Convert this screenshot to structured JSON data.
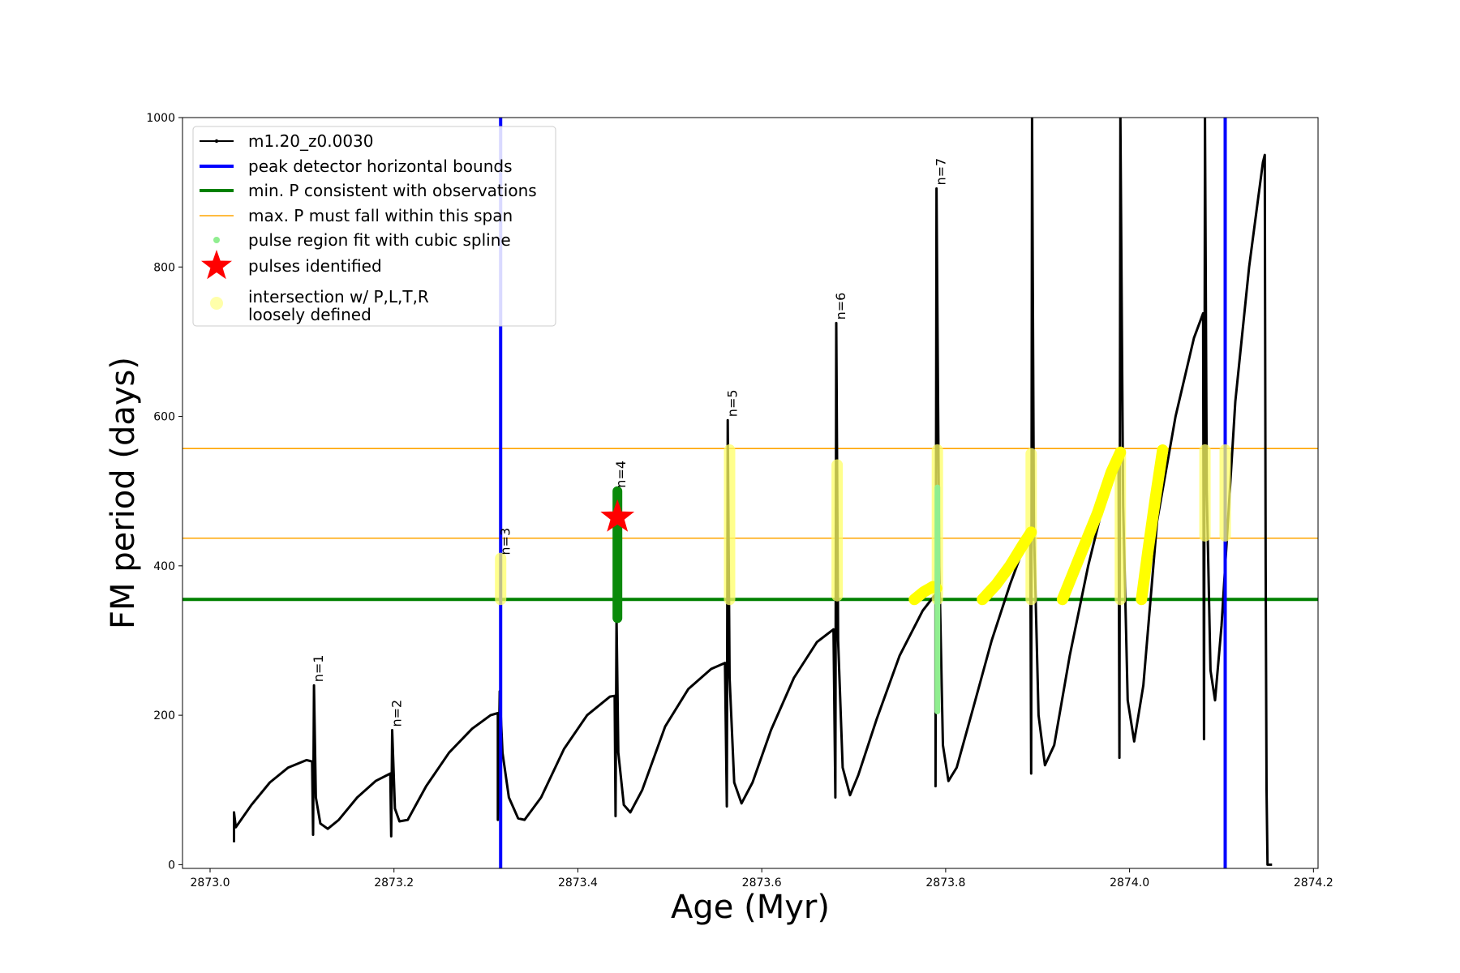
{
  "chart_data": {
    "type": "line",
    "xlabel": "Age (Myr)",
    "ylabel": "FM period (days)",
    "xlim": [
      2872.97,
      2874.205
    ],
    "ylim": [
      -5,
      1000
    ],
    "x_ticks": [
      "2873.0",
      "2873.2",
      "2873.4",
      "2873.6",
      "2873.8",
      "2874.0",
      "2874.2"
    ],
    "x_tick_values": [
      2873.0,
      2873.2,
      2873.4,
      2873.6,
      2873.8,
      2874.0,
      2874.2
    ],
    "y_ticks": [
      "0",
      "200",
      "400",
      "600",
      "800",
      "1000"
    ],
    "y_tick_values": [
      0,
      200,
      400,
      600,
      800,
      1000
    ],
    "legend_position": "upper-left",
    "legend": [
      {
        "key": "track",
        "label": "m1.20_z0.0030",
        "color": "#000000"
      },
      {
        "key": "bounds",
        "label": "peak detector horizontal bounds",
        "color": "#0000ff"
      },
      {
        "key": "minp",
        "label": "min. P consistent with observations",
        "color": "#008000"
      },
      {
        "key": "span",
        "label": "max. P must fall within this span",
        "color": "#ffa500"
      },
      {
        "key": "spline",
        "label": "pulse region fit with cubic spline",
        "color": "#90ee90"
      },
      {
        "key": "pulses",
        "label": "pulses identified",
        "color": "#ff0000"
      },
      {
        "key": "loose",
        "label": "intersection w/ P,L,T,R",
        "label2": "loosely defined",
        "color": "#ffffaa"
      }
    ],
    "series": [
      {
        "name": "m1.20_z0.0030",
        "color": "#000000",
        "points": [
          [
            2873.026,
            30
          ],
          [
            2873.026,
            70
          ],
          [
            2873.028,
            50
          ],
          [
            2873.045,
            80
          ],
          [
            2873.065,
            110
          ],
          [
            2873.085,
            130
          ],
          [
            2873.105,
            140
          ],
          [
            2873.111,
            138
          ],
          [
            2873.112,
            40
          ],
          [
            2873.113,
            240
          ],
          [
            2873.115,
            90
          ],
          [
            2873.12,
            55
          ],
          [
            2873.128,
            48
          ],
          [
            2873.14,
            60
          ],
          [
            2873.16,
            90
          ],
          [
            2873.18,
            112
          ],
          [
            2873.196,
            122
          ],
          [
            2873.197,
            38
          ],
          [
            2873.198,
            180
          ],
          [
            2873.201,
            75
          ],
          [
            2873.206,
            58
          ],
          [
            2873.215,
            60
          ],
          [
            2873.235,
            105
          ],
          [
            2873.26,
            150
          ],
          [
            2873.285,
            182
          ],
          [
            2873.305,
            200
          ],
          [
            2873.313,
            203
          ],
          [
            2873.313,
            60
          ],
          [
            2873.315,
            232
          ],
          [
            2873.318,
            150
          ],
          [
            2873.325,
            90
          ],
          [
            2873.335,
            62
          ],
          [
            2873.342,
            60
          ],
          [
            2873.36,
            90
          ],
          [
            2873.385,
            155
          ],
          [
            2873.41,
            200
          ],
          [
            2873.435,
            225
          ],
          [
            2873.44,
            226
          ],
          [
            2873.441,
            65
          ],
          [
            2873.442,
            330
          ],
          [
            2873.444,
            150
          ],
          [
            2873.45,
            80
          ],
          [
            2873.457,
            70
          ],
          [
            2873.47,
            100
          ],
          [
            2873.495,
            185
          ],
          [
            2873.52,
            235
          ],
          [
            2873.545,
            262
          ],
          [
            2873.56,
            270
          ],
          [
            2873.562,
            78
          ],
          [
            2873.563,
            595
          ],
          [
            2873.565,
            250
          ],
          [
            2873.57,
            110
          ],
          [
            2873.578,
            82
          ],
          [
            2873.59,
            110
          ],
          [
            2873.61,
            180
          ],
          [
            2873.635,
            250
          ],
          [
            2873.66,
            298
          ],
          [
            2873.678,
            315
          ],
          [
            2873.68,
            90
          ],
          [
            2873.681,
            725
          ],
          [
            2873.683,
            300
          ],
          [
            2873.688,
            130
          ],
          [
            2873.696,
            93
          ],
          [
            2873.705,
            120
          ],
          [
            2873.725,
            195
          ],
          [
            2873.75,
            280
          ],
          [
            2873.775,
            340
          ],
          [
            2873.789,
            362
          ],
          [
            2873.789,
            105
          ],
          [
            2873.79,
            905
          ],
          [
            2873.793,
            400
          ],
          [
            2873.797,
            160
          ],
          [
            2873.803,
            112
          ],
          [
            2873.812,
            130
          ],
          [
            2873.83,
            210
          ],
          [
            2873.85,
            300
          ],
          [
            2873.87,
            375
          ],
          [
            2873.885,
            425
          ],
          [
            2873.892,
            442
          ],
          [
            2873.893,
            122
          ],
          [
            2873.894,
            1000
          ],
          [
            2873.896,
            450
          ],
          [
            2873.901,
            200
          ],
          [
            2873.908,
            133
          ],
          [
            2873.918,
            160
          ],
          [
            2873.935,
            280
          ],
          [
            2873.955,
            400
          ],
          [
            2873.975,
            500
          ],
          [
            2873.988,
            550
          ],
          [
            2873.989,
            143
          ],
          [
            2873.99,
            1000
          ],
          [
            2873.993,
            480
          ],
          [
            2873.998,
            220
          ],
          [
            2874.005,
            165
          ],
          [
            2874.015,
            240
          ],
          [
            2874.03,
            460
          ],
          [
            2874.05,
            600
          ],
          [
            2874.07,
            705
          ],
          [
            2874.08,
            738
          ],
          [
            2874.081,
            168
          ],
          [
            2874.082,
            1000
          ],
          [
            2874.084,
            500
          ],
          [
            2874.088,
            260
          ],
          [
            2874.093,
            220
          ],
          [
            2874.1,
            320
          ],
          [
            2874.115,
            620
          ],
          [
            2874.13,
            800
          ],
          [
            2874.145,
            940
          ],
          [
            2874.147,
            950
          ],
          [
            2874.148,
            400
          ],
          [
            2874.149,
            100
          ],
          [
            2874.15,
            0
          ],
          [
            2874.155,
            0
          ]
        ]
      }
    ],
    "vertical_lines": {
      "name": "peak detector horizontal bounds",
      "color": "#0000ff",
      "x": [
        2873.316,
        2874.104
      ]
    },
    "horizontal_lines": [
      {
        "name": "min. P consistent with observations",
        "color": "#008000",
        "y": 355
      },
      {
        "name": "max. P must fall within this span",
        "color": "#ffa500",
        "y": 557
      },
      {
        "name": "max. P must fall within this span",
        "color": "#ffa500",
        "y": 437
      }
    ],
    "spline_regions": [
      {
        "x": 2873.443,
        "y": [
          330,
          500
        ]
      },
      {
        "x": 2873.791,
        "y": [
          205,
          505
        ]
      }
    ],
    "pulses_identified": [
      {
        "x": 2873.443,
        "y": 465
      }
    ],
    "loosely_defined_regions": [
      {
        "x": 2873.316,
        "y": [
          355,
          410
        ]
      },
      {
        "x": 2873.565,
        "y": [
          355,
          555
        ]
      },
      {
        "x": 2873.682,
        "y": [
          360,
          535
        ]
      },
      {
        "x": 2873.791,
        "y": [
          355,
          555
        ]
      },
      {
        "x": 2873.893,
        "y": [
          355,
          550
        ]
      },
      {
        "x": 2873.99,
        "y": [
          355,
          550
        ]
      },
      {
        "x": 2874.082,
        "y": [
          440,
          555
        ]
      },
      {
        "x": 2874.104,
        "y": [
          440,
          555
        ]
      }
    ],
    "loosely_defined_arcs": [
      [
        [
          2873.766,
          355
        ],
        [
          2873.776,
          365
        ],
        [
          2873.786,
          372
        ],
        [
          2873.79,
          370
        ]
      ],
      [
        [
          2873.84,
          355
        ],
        [
          2873.855,
          375
        ],
        [
          2873.87,
          400
        ],
        [
          2873.885,
          430
        ],
        [
          2873.893,
          445
        ]
      ],
      [
        [
          2873.927,
          355
        ],
        [
          2873.945,
          410
        ],
        [
          2873.965,
          470
        ],
        [
          2873.98,
          525
        ],
        [
          2873.99,
          552
        ]
      ],
      [
        [
          2874.013,
          355
        ],
        [
          2874.02,
          420
        ],
        [
          2874.028,
          490
        ],
        [
          2874.036,
          555
        ]
      ]
    ],
    "pulse_labels": [
      {
        "text": "n=1",
        "x": 2873.114,
        "y": 240
      },
      {
        "text": "n=2",
        "x": 2873.199,
        "y": 180
      },
      {
        "text": "n=3",
        "x": 2873.317,
        "y": 410
      },
      {
        "text": "n=4",
        "x": 2873.443,
        "y": 500
      },
      {
        "text": "n=5",
        "x": 2873.564,
        "y": 595
      },
      {
        "text": "n=6",
        "x": 2873.682,
        "y": 725
      },
      {
        "text": "n=7",
        "x": 2873.791,
        "y": 905
      }
    ]
  }
}
